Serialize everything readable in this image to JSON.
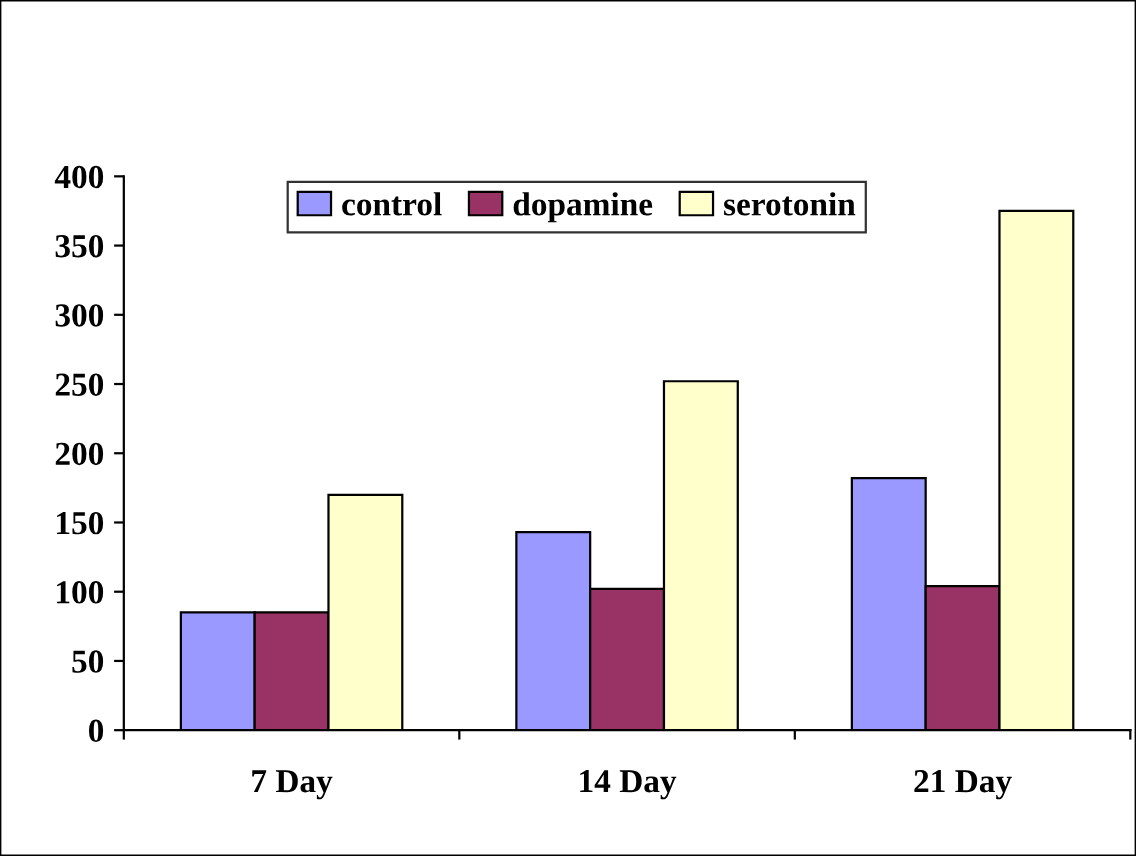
{
  "chart_data": {
    "type": "bar",
    "categories": [
      "7 Day",
      "14 Day",
      "21 Day"
    ],
    "series": [
      {
        "name": "control",
        "color": "#9999ff",
        "values": [
          85,
          143,
          182
        ]
      },
      {
        "name": "dopamine",
        "color": "#993366",
        "values": [
          85,
          102,
          104
        ]
      },
      {
        "name": "serotonin",
        "color": "#ffffcc",
        "values": [
          170,
          252,
          375
        ]
      }
    ],
    "ylim": [
      0,
      400
    ],
    "yticks": [
      0,
      50,
      100,
      150,
      200,
      250,
      300,
      350,
      400
    ],
    "grid": false,
    "legend": "top"
  }
}
